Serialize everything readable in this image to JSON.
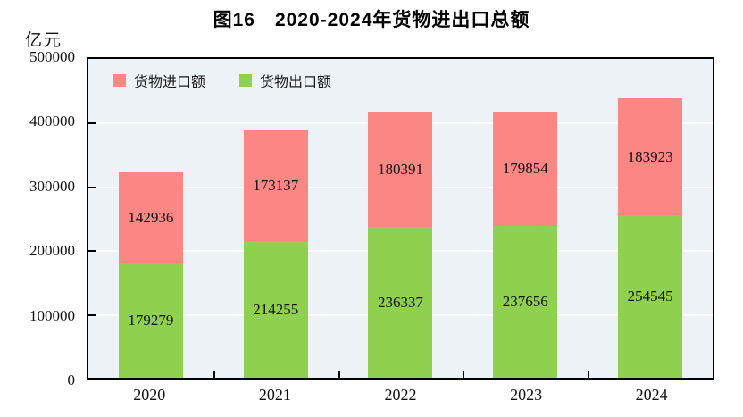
{
  "title": "图16　2020-2024年货物进出口总额",
  "y_axis": {
    "unit": "亿元",
    "ticks": [
      "500000",
      "400000",
      "300000",
      "200000",
      "100000",
      "0"
    ]
  },
  "legend": [
    {
      "label": "货物进口额",
      "color": "#FB8784"
    },
    {
      "label": "货物出口额",
      "color": "#8FD14E"
    }
  ],
  "chart_data": {
    "type": "bar",
    "stacked": true,
    "title": "图16　2020-2024年货物进出口总额",
    "ylabel": "亿元",
    "ylim": [
      0,
      500000
    ],
    "ytick_interval": 100000,
    "grid": true,
    "legend_position": "top-left-inside",
    "categories": [
      "2020",
      "2021",
      "2022",
      "2023",
      "2024"
    ],
    "series": [
      {
        "name": "货物进口额",
        "color": "#FB8784",
        "values": [
          142936,
          173137,
          180391,
          179854,
          183923
        ]
      },
      {
        "name": "货物出口额",
        "color": "#8FD14E",
        "values": [
          179279,
          214255,
          236337,
          237656,
          254545
        ]
      }
    ]
  }
}
